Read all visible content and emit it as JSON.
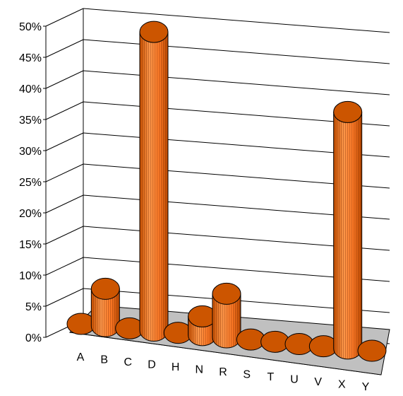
{
  "chart_data": {
    "type": "bar",
    "style": "3d-cylinder",
    "title": "",
    "xlabel": "",
    "ylabel": "",
    "categories": [
      "A",
      "B",
      "C",
      "D",
      "H",
      "N",
      "R",
      "S",
      "T",
      "U",
      "V",
      "X",
      "Y"
    ],
    "series": [
      {
        "values": [
          0,
          6,
          0,
          48,
          0,
          3,
          7,
          0,
          0,
          0,
          0,
          38,
          0
        ]
      }
    ],
    "ylim": [
      0,
      50
    ],
    "yticks": [
      "0%",
      "5%",
      "10%",
      "15%",
      "20%",
      "25%",
      "30%",
      "35%",
      "40%",
      "45%",
      "50%"
    ],
    "grid": true,
    "legend": "none",
    "colors": {
      "bar_body": "#ff8033",
      "bar_top": "#cc5500",
      "floor": "#c0c0c0",
      "grid": "#000000"
    }
  }
}
